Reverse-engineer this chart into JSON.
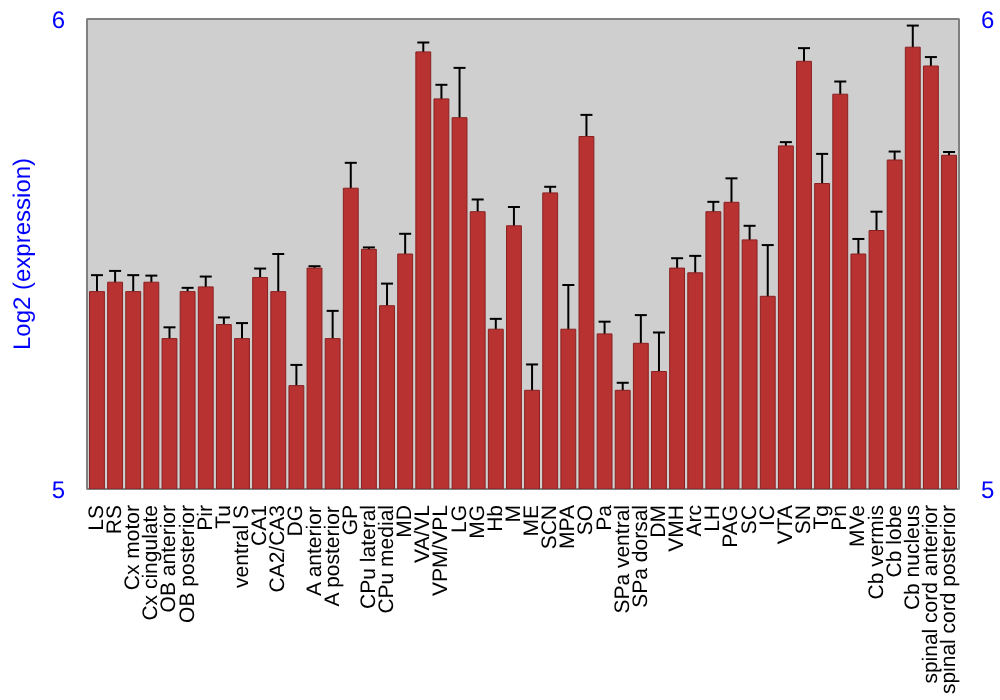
{
  "chart_data": {
    "type": "bar",
    "ylabel": "Log2 (expression)",
    "categories": [
      "LS",
      "RS",
      "Cx motor",
      "Cx cingulate",
      "OB anterior",
      "OB posterior",
      "Pir",
      "Tu",
      "ventral S",
      "CA1",
      "CA2/CA3",
      "DG",
      "A anterior",
      "A posterior",
      "GP",
      "CPu lateral",
      "CPu medial",
      "MD",
      "VA/VL",
      "VPM/VPL",
      "LG",
      "MG",
      "Hb",
      "M",
      "ME",
      "SCN",
      "MPA",
      "SO",
      "Pa",
      "SPa ventral",
      "SPa dorsal",
      "DM",
      "VMH",
      "Arc",
      "LH",
      "PAG",
      "SC",
      "IC",
      "VTA",
      "SN",
      "Tg",
      "Pn",
      "MVe",
      "Cb vermis",
      "Cb lobe",
      "Cb nucleus",
      "spinal cord anterior",
      "spinal cord posterior"
    ],
    "values": [
      5.42,
      5.44,
      5.42,
      5.44,
      5.32,
      5.42,
      5.43,
      5.35,
      5.32,
      5.45,
      5.42,
      5.22,
      5.47,
      5.32,
      5.64,
      5.51,
      5.39,
      5.5,
      5.93,
      5.83,
      5.79,
      5.59,
      5.34,
      5.56,
      5.21,
      5.63,
      5.34,
      5.75,
      5.33,
      5.21,
      5.31,
      5.25,
      5.47,
      5.46,
      5.59,
      5.61,
      5.53,
      5.41,
      5.73,
      5.91,
      5.65,
      5.84,
      5.5,
      5.55,
      5.7,
      5.94,
      5.9,
      5.71
    ],
    "errors": [
      0.035,
      0.024,
      0.035,
      0.014,
      0.024,
      0.008,
      0.022,
      0.015,
      0.033,
      0.019,
      0.08,
      0.044,
      0.004,
      0.059,
      0.054,
      0.004,
      0.047,
      0.043,
      0.02,
      0.03,
      0.106,
      0.026,
      0.022,
      0.04,
      0.055,
      0.013,
      0.094,
      0.046,
      0.026,
      0.016,
      0.06,
      0.083,
      0.021,
      0.036,
      0.021,
      0.051,
      0.03,
      0.109,
      0.008,
      0.028,
      0.063,
      0.027,
      0.032,
      0.04,
      0.018,
      0.046,
      0.019,
      0.007
    ],
    "color": "#b83232",
    "ylim": [
      5,
      6
    ],
    "yticks": [
      5,
      6
    ],
    "y2lim": [
      5,
      6
    ],
    "y2ticks": [
      5,
      6
    ],
    "grid": false
  }
}
